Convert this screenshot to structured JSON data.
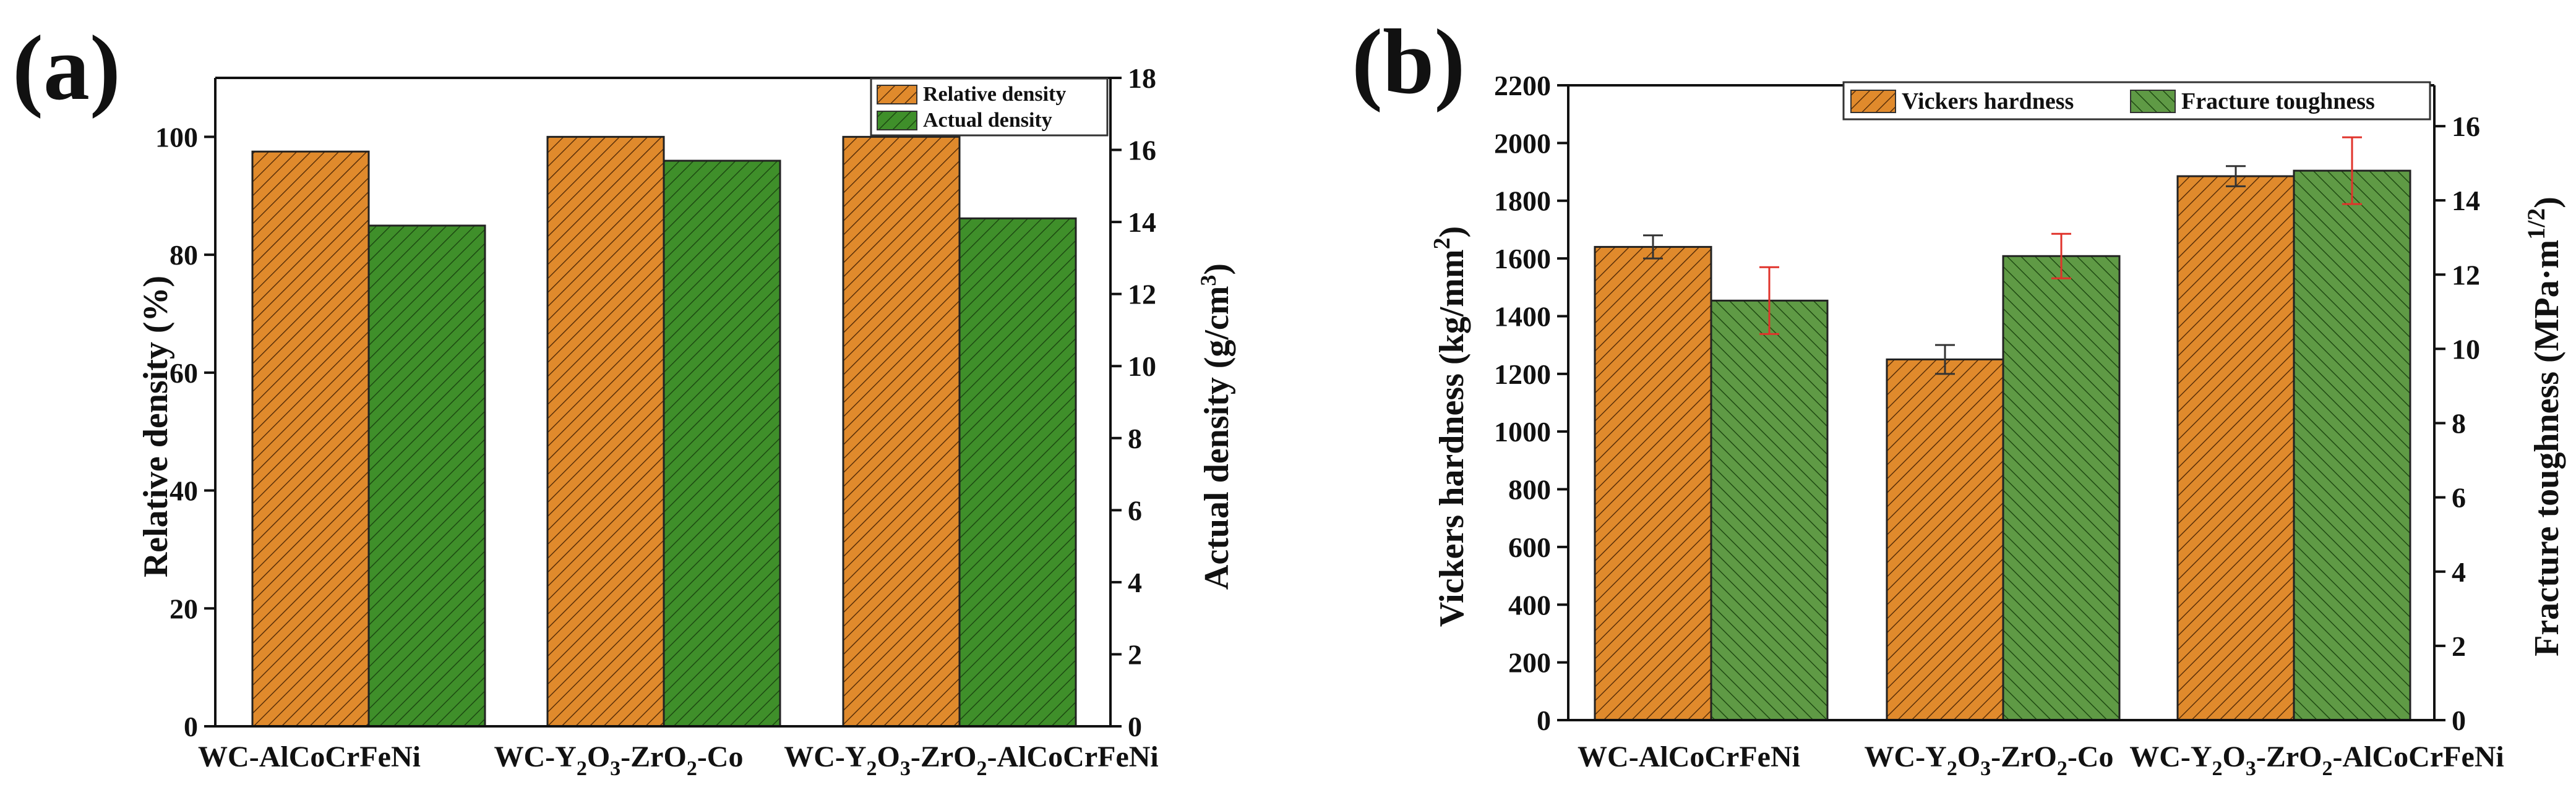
{
  "colors": {
    "orange": "#e08a2c",
    "green": "#3f8f2a",
    "green_b": "#5f9a45",
    "error_red": "#e0332b"
  },
  "panel_a": {
    "label": "(a)",
    "legend": [
      "Relative density",
      "Actual density"
    ]
  },
  "panel_b": {
    "label": "(b)",
    "legend": [
      "Vickers hardness",
      "Fracture toughness"
    ]
  },
  "chart_data": [
    {
      "type": "bar",
      "panel": "(a)",
      "categories": [
        "WC-AlCoCrFeNi",
        "WC-Y2O3-ZrO2-Co",
        "WC-Y2O3-ZrO2-AlCoCrFeNi"
      ],
      "series": [
        {
          "name": "Relative density",
          "axis": "left",
          "values": [
            97.5,
            100,
            100
          ]
        },
        {
          "name": "Actual density",
          "axis": "right",
          "values": [
            13.9,
            15.7,
            14.1
          ]
        }
      ],
      "ylabel": "Relative density (%)",
      "y2label": "Actual density (g/cm3)",
      "ylim": [
        0,
        110
      ],
      "y2lim": [
        0,
        18
      ],
      "yticks": [
        0,
        20,
        40,
        60,
        80,
        100
      ],
      "y2ticks": [
        0,
        2,
        4,
        6,
        8,
        10,
        12,
        14,
        16,
        18
      ],
      "legend_position": "top-right"
    },
    {
      "type": "bar",
      "panel": "(b)",
      "categories": [
        "WC-AlCoCrFeNi",
        "WC-Y2O3-ZrO2-Co",
        "WC-Y2O3-ZrO2-AlCoCrFeNi"
      ],
      "series": [
        {
          "name": "Vickers hardness",
          "axis": "left",
          "values": [
            1640,
            1250,
            1885
          ],
          "errors": [
            40,
            50,
            35
          ]
        },
        {
          "name": "Fracture toughness",
          "axis": "right",
          "values": [
            11.3,
            12.5,
            14.8
          ],
          "errors": [
            0.9,
            0.6,
            0.9
          ]
        }
      ],
      "ylabel": "Vickers hardness (kg/mm2)",
      "y2label": "Fracture toughness (MPa·m1/2)",
      "ylim": [
        0,
        2200
      ],
      "y2lim": [
        0,
        17.1
      ],
      "yticks": [
        0,
        200,
        400,
        600,
        800,
        1000,
        1200,
        1400,
        1600,
        1800,
        2000,
        2200
      ],
      "y2ticks": [
        0,
        2,
        4,
        6,
        8,
        10,
        12,
        14,
        16
      ],
      "legend_position": "top-right"
    }
  ]
}
